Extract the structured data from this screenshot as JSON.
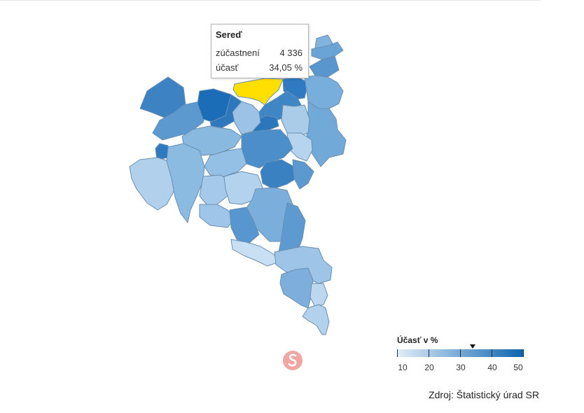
{
  "tooltip": {
    "title": "Sereď",
    "rows": [
      {
        "label": "zúčastnení",
        "value": "4 336"
      },
      {
        "label": "účasť",
        "value": "34,05 %"
      }
    ]
  },
  "legend": {
    "title": "Účasť v %",
    "labels": [
      "10",
      "20",
      "30",
      "40",
      "50"
    ],
    "range": [
      10,
      50
    ],
    "marker_value": 34.05,
    "gradient_colors": [
      "#e1eef9",
      "#0b64b0"
    ]
  },
  "source": "Zdroj: Štatistický úrad SR",
  "colors": {
    "highlight": "#ffdf00",
    "border": "#6a8fb0"
  }
}
